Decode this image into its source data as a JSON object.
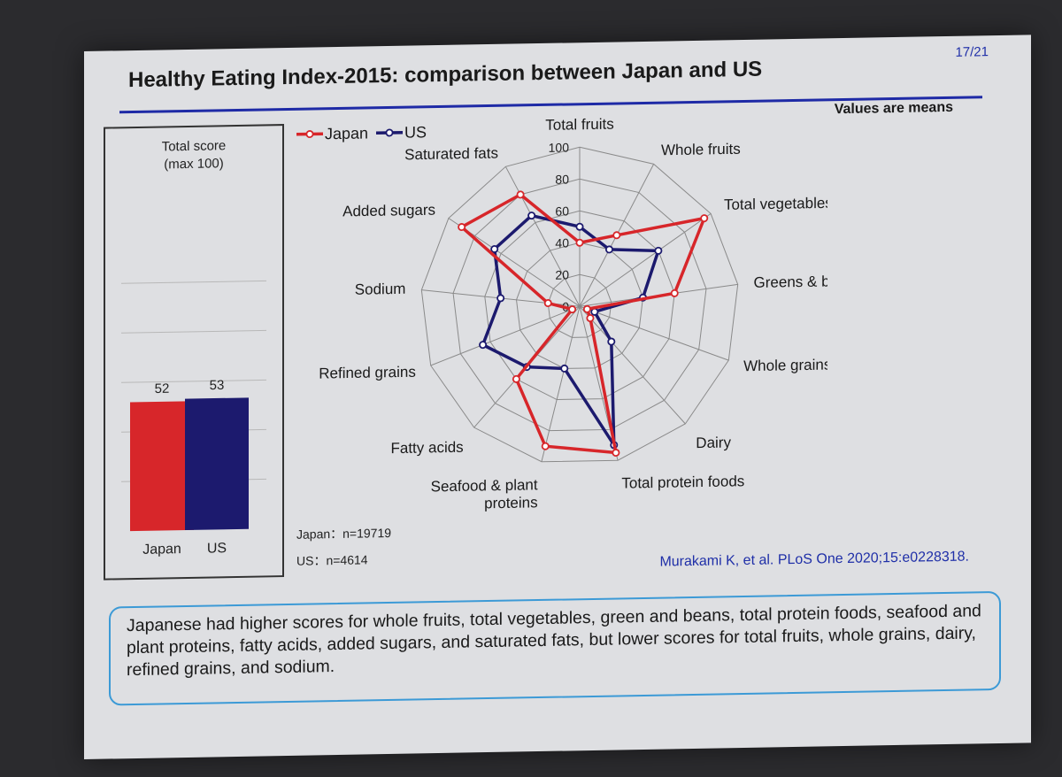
{
  "slide": {
    "title": "Healthy Eating Index-2015: comparison between Japan and US",
    "page": "17/21",
    "note": "Values are means",
    "score_header_line1": "Total score",
    "score_header_line2": "(max 100)",
    "sample_japan": "Japan：n=19719",
    "sample_us": "US：n=4614",
    "citation": "Murakami K, et al. PLoS One 2020;15:e0228318.",
    "summary": "Japanese had higher scores for whole fruits, total vegetables, green and beans, total protein foods, seafood and plant proteins, fatty acids, added sugars, and saturated fats, but lower scores for total fruits, whole grains, dairy, refined grains, and sodium."
  },
  "colors": {
    "japan": "#d7262a",
    "us": "#1c1a6e",
    "accent": "#1e2aa6",
    "grid": "#8a8a8a"
  },
  "chart_data": [
    {
      "type": "bar",
      "title": "Total score (max 100)",
      "categories": [
        "Japan",
        "US"
      ],
      "values": [
        52,
        53
      ],
      "ylim": [
        0,
        100
      ],
      "grid": true
    },
    {
      "type": "radar",
      "legend": [
        "Japan",
        "US"
      ],
      "legend_position": "top-left",
      "categories": [
        "Total fruits",
        "Whole fruits",
        "Total vegetables",
        "Greens & beans",
        "Whole grains",
        "Dairy",
        "Total protein foods",
        "Seafood & plant proteins",
        "Fatty acids",
        "Refined grains",
        "Sodium",
        "Added sugars",
        "Saturated fats"
      ],
      "ticks": [
        0,
        20,
        40,
        60,
        80,
        100
      ],
      "rlim": [
        0,
        100
      ],
      "series": [
        {
          "name": "Japan",
          "values": [
            40,
            50,
            95,
            60,
            5,
            10,
            95,
            90,
            60,
            5,
            20,
            90,
            80
          ]
        },
        {
          "name": "US",
          "values": [
            50,
            40,
            60,
            40,
            10,
            30,
            90,
            40,
            50,
            65,
            50,
            65,
            65
          ]
        }
      ]
    }
  ]
}
